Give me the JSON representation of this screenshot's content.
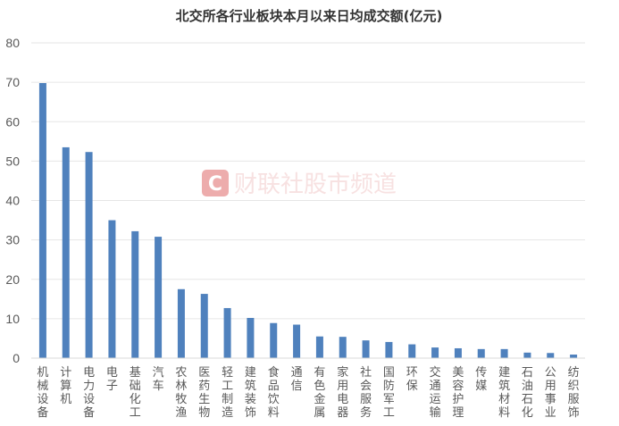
{
  "chart_data": {
    "type": "bar",
    "title": "北交所各行业板块本月以来日均成交额(亿元)",
    "xlabel": "",
    "ylabel": "",
    "ylim": [
      0,
      80
    ],
    "yticks": [
      0,
      10,
      20,
      30,
      40,
      50,
      60,
      70,
      80
    ],
    "grid": true,
    "legend": "none",
    "categories": [
      "机械设备",
      "计算机",
      "电力设备",
      "电子",
      "基础化工",
      "汽车",
      "农林牧渔",
      "医药生物",
      "轻工制造",
      "建筑装饰",
      "食品饮料",
      "通信",
      "有色金属",
      "家用电器",
      "社会服务",
      "国防军工",
      "环保",
      "交通运输",
      "美容护理",
      "传媒",
      "建筑材料",
      "石油石化",
      "公用事业",
      "纺织服饰"
    ],
    "values": [
      69.8,
      53.5,
      52.3,
      35.0,
      32.2,
      30.8,
      17.5,
      16.3,
      12.7,
      10.2,
      8.9,
      8.5,
      5.5,
      5.4,
      4.5,
      4.1,
      3.5,
      2.7,
      2.5,
      2.3,
      2.3,
      1.4,
      1.3,
      0.9
    ],
    "bar_color": "#4f81bd"
  },
  "watermark": {
    "text": "财联社股市频道",
    "icon": "cls-logo-icon",
    "color": "#e8a0a0"
  }
}
